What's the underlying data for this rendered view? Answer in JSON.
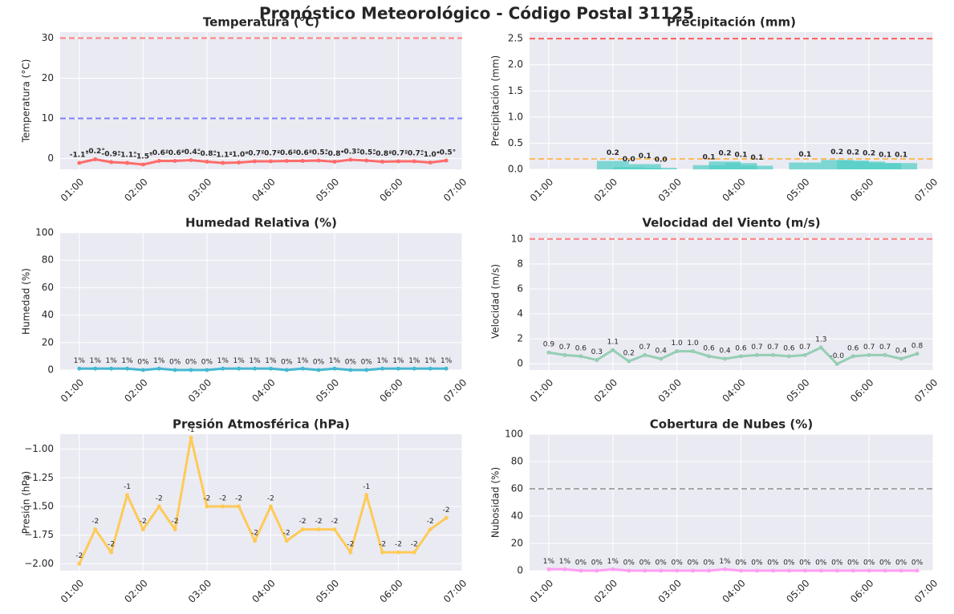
{
  "title": "Pronóstico Meteorológico - Código Postal 31125",
  "chart_data": [
    {
      "type": "line",
      "title": "Temperatura (°C)",
      "ylabel": "Temperatura (°C)",
      "color": "#ff6b6b",
      "grid": true,
      "x": [
        1,
        1.25,
        1.5,
        1.75,
        2,
        2.25,
        2.5,
        2.75,
        3,
        3.25,
        3.5,
        3.75,
        4,
        4.25,
        4.5,
        4.75,
        5,
        5.25,
        5.5,
        5.75,
        6,
        6.25,
        6.5,
        6.75
      ],
      "values": [
        -1.1,
        -0.2,
        -0.9,
        -1.1,
        -1.5,
        -0.6,
        -0.6,
        -0.4,
        -0.8,
        -1.1,
        -1.0,
        -0.7,
        -0.7,
        -0.6,
        -0.6,
        -0.5,
        -0.8,
        -0.3,
        -0.5,
        -0.8,
        -0.7,
        -0.7,
        -1.0,
        -0.5
      ],
      "value_labels": [
        "-1.1°",
        "-0.2°",
        "-0.9°",
        "-1.1°",
        "-1.5°",
        "-0.6°",
        "-0.6°",
        "-0.4°",
        "-0.8°",
        "-1.1°",
        "-1.0°",
        "-0.7°",
        "-0.7°",
        "-0.6°",
        "-0.6°",
        "-0.5°",
        "-0.8°",
        "-0.3°",
        "-0.5°",
        "-0.8°",
        "-0.7°",
        "-0.7°",
        "-1.0°",
        "-0.5°"
      ],
      "xlim": [
        0.7,
        7
      ],
      "xticks": [
        {
          "value": 1,
          "label": "01:00"
        },
        {
          "value": 2,
          "label": "02:00"
        },
        {
          "value": 3,
          "label": "03:00"
        },
        {
          "value": 4,
          "label": "04:00"
        },
        {
          "value": 5,
          "label": "05:00"
        },
        {
          "value": 6,
          "label": "06:00"
        },
        {
          "value": 7,
          "label": "07:00"
        }
      ],
      "ylim": [
        -2.7,
        31.5
      ],
      "yticks": [
        0,
        10,
        20,
        30
      ],
      "hlines": [
        {
          "value": 30,
          "color": "#ff6b6b"
        },
        {
          "value": 10,
          "color": "#6b6bff"
        }
      ]
    },
    {
      "type": "bar",
      "title": "Precipitación (mm)",
      "ylabel": "Precipitación (mm)",
      "color": "#4ecdc4",
      "grid": true,
      "x": [
        1,
        1.25,
        1.5,
        1.75,
        2,
        2.25,
        2.5,
        2.75,
        3,
        3.25,
        3.5,
        3.75,
        4,
        4.25,
        4.5,
        4.75,
        5,
        5.25,
        5.5,
        5.75,
        6,
        6.25,
        6.5,
        6.75
      ],
      "values": [
        null,
        null,
        null,
        null,
        0.16,
        0.04,
        0.1,
        0.03,
        null,
        null,
        0.08,
        0.15,
        0.12,
        0.07,
        null,
        null,
        0.13,
        null,
        0.18,
        0.17,
        0.15,
        0.12,
        0.12,
        null
      ],
      "value_labels": [
        null,
        null,
        null,
        null,
        "0.2",
        "0.0",
        "0.1",
        "0.0",
        null,
        null,
        "0.1",
        "0.2",
        "0.1",
        "0.1",
        null,
        null,
        "0.1",
        null,
        "0.2",
        "0.2",
        "0.2",
        "0.1",
        "0.1",
        null
      ],
      "xlim": [
        0.7,
        7
      ],
      "xticks": [
        {
          "value": 1,
          "label": "01:00"
        },
        {
          "value": 2,
          "label": "02:00"
        },
        {
          "value": 3,
          "label": "03:00"
        },
        {
          "value": 4,
          "label": "04:00"
        },
        {
          "value": 5,
          "label": "05:00"
        },
        {
          "value": 6,
          "label": "06:00"
        },
        {
          "value": 7,
          "label": "07:00"
        }
      ],
      "ylim": [
        0,
        2.625
      ],
      "yticks": [
        {
          "value": 0,
          "label": "0.0"
        },
        0.5,
        {
          "value": 1,
          "label": "1.0"
        },
        1.5,
        {
          "value": 2,
          "label": "2.0"
        },
        2.5
      ],
      "hlines": [
        {
          "value": 2.5,
          "color": "#ff4444"
        },
        {
          "value": 0.2,
          "color": "#ffb347"
        }
      ]
    },
    {
      "type": "line",
      "title": "Humedad Relativa (%)",
      "ylabel": "Humedad (%)",
      "color": "#45b7d1",
      "grid": true,
      "x": [
        1,
        1.25,
        1.5,
        1.75,
        2,
        2.25,
        2.5,
        2.75,
        3,
        3.25,
        3.5,
        3.75,
        4,
        4.25,
        4.5,
        4.75,
        5,
        5.25,
        5.5,
        5.75,
        6,
        6.25,
        6.5,
        6.75
      ],
      "values": [
        1,
        1,
        1,
        1,
        0,
        1,
        0,
        0,
        0,
        1,
        1,
        1,
        1,
        0,
        1,
        0,
        1,
        0,
        0,
        1,
        1,
        1,
        1,
        1
      ],
      "value_labels": [
        "1%",
        "1%",
        "1%",
        "1%",
        "0%",
        "1%",
        "0%",
        "0%",
        "0%",
        "1%",
        "1%",
        "1%",
        "1%",
        "0%",
        "1%",
        "0%",
        "1%",
        "0%",
        "0%",
        "1%",
        "1%",
        "1%",
        "1%",
        "1%"
      ],
      "xlim": [
        0.7,
        7
      ],
      "xticks": [
        {
          "value": 1,
          "label": "01:00"
        },
        {
          "value": 2,
          "label": "02:00"
        },
        {
          "value": 3,
          "label": "03:00"
        },
        {
          "value": 4,
          "label": "04:00"
        },
        {
          "value": 5,
          "label": "05:00"
        },
        {
          "value": 6,
          "label": "06:00"
        },
        {
          "value": 7,
          "label": "07:00"
        }
      ],
      "ylim": [
        0,
        100
      ],
      "yticks": [
        0,
        20,
        40,
        60,
        80,
        100
      ],
      "hlines": []
    },
    {
      "type": "line",
      "title": "Velocidad del Viento (m/s)",
      "ylabel": "Velocidad (m/s)",
      "color": "#96ceb4",
      "grid": true,
      "x": [
        1,
        1.25,
        1.5,
        1.75,
        2,
        2.25,
        2.5,
        2.75,
        3,
        3.25,
        3.5,
        3.75,
        4,
        4.25,
        4.5,
        4.75,
        5,
        5.25,
        5.5,
        5.75,
        6,
        6.25,
        6.5,
        6.75
      ],
      "values": [
        0.9,
        0.7,
        0.6,
        0.3,
        1.1,
        0.2,
        0.7,
        0.4,
        1.0,
        1.0,
        0.6,
        0.4,
        0.6,
        0.7,
        0.7,
        0.6,
        0.7,
        1.3,
        -0.02,
        0.6,
        0.7,
        0.7,
        0.4,
        0.8
      ],
      "value_labels": [
        "0.9",
        "0.7",
        "0.6",
        "0.3",
        "1.1",
        "0.2",
        "0.7",
        "0.4",
        "1.0",
        "1.0",
        "0.6",
        "0.4",
        "0.6",
        "0.7",
        "0.7",
        "0.6",
        "0.7",
        "1.3",
        "-0.0",
        "0.6",
        "0.7",
        "0.7",
        "0.4",
        "0.8"
      ],
      "xlim": [
        0.7,
        7
      ],
      "xticks": [
        {
          "value": 1,
          "label": "01:00"
        },
        {
          "value": 2,
          "label": "02:00"
        },
        {
          "value": 3,
          "label": "03:00"
        },
        {
          "value": 4,
          "label": "04:00"
        },
        {
          "value": 5,
          "label": "05:00"
        },
        {
          "value": 6,
          "label": "06:00"
        },
        {
          "value": 7,
          "label": "07:00"
        }
      ],
      "ylim": [
        -0.5,
        10.5
      ],
      "yticks": [
        0,
        2,
        4,
        6,
        8,
        10
      ],
      "hlines": [
        {
          "value": 10,
          "color": "#ff6b6b"
        }
      ]
    },
    {
      "type": "line",
      "title": "Presión Atmosférica (hPa)",
      "ylabel": "Presión (hPa)",
      "color": "#feca57",
      "grid": true,
      "x": [
        1,
        1.25,
        1.5,
        1.75,
        2,
        2.25,
        2.5,
        2.75,
        3,
        3.25,
        3.5,
        3.75,
        4,
        4.25,
        4.5,
        4.75,
        5,
        5.25,
        5.5,
        5.75,
        6,
        6.25,
        6.5,
        6.75
      ],
      "values": [
        -2.0,
        -1.7,
        -1.9,
        -1.4,
        -1.7,
        -1.5,
        -1.7,
        -0.9,
        -1.5,
        -1.5,
        -1.5,
        -1.8,
        -1.5,
        -1.8,
        -1.7,
        -1.7,
        -1.7,
        -1.9,
        -1.4,
        -1.9,
        -1.9,
        -1.9,
        -1.7,
        -1.6
      ],
      "value_labels": [
        "-2",
        "-2",
        "-2",
        "-1",
        "-2",
        "-2",
        "-2",
        "-1",
        "-2",
        "-2",
        "-2",
        "-2",
        "-2",
        "-2",
        "-2",
        "-2",
        "-2",
        "-2",
        "-1",
        "-2",
        "-2",
        "-2",
        "-2",
        "-2"
      ],
      "xlim": [
        0.7,
        7
      ],
      "xticks": [
        {
          "value": 1,
          "label": "01:00"
        },
        {
          "value": 2,
          "label": "02:00"
        },
        {
          "value": 3,
          "label": "03:00"
        },
        {
          "value": 4,
          "label": "04:00"
        },
        {
          "value": 5,
          "label": "05:00"
        },
        {
          "value": 6,
          "label": "06:00"
        },
        {
          "value": 7,
          "label": "07:00"
        }
      ],
      "ylim": [
        -2.06,
        -0.87
      ],
      "yticks": [
        {
          "value": -2,
          "label": "−2.00"
        },
        {
          "value": -1.75,
          "label": "−1.75"
        },
        {
          "value": -1.5,
          "label": "−1.50"
        },
        {
          "value": -1.25,
          "label": "−1.25"
        },
        {
          "value": -1,
          "label": "−1.00"
        }
      ],
      "hlines": []
    },
    {
      "type": "line",
      "title": "Cobertura de Nubes (%)",
      "ylabel": "Nubosidad (%)",
      "color": "#ff9ff3",
      "grid": true,
      "x": [
        1,
        1.25,
        1.5,
        1.75,
        2,
        2.25,
        2.5,
        2.75,
        3,
        3.25,
        3.5,
        3.75,
        4,
        4.25,
        4.5,
        4.75,
        5,
        5.25,
        5.5,
        5.75,
        6,
        6.25,
        6.5,
        6.75
      ],
      "values": [
        1,
        1,
        0,
        0,
        1,
        0,
        0,
        0,
        0,
        0,
        0,
        1,
        0,
        0,
        0,
        0,
        0,
        0,
        0,
        0,
        0,
        0,
        0,
        0
      ],
      "value_labels": [
        "1%",
        "1%",
        "0%",
        "0%",
        "1%",
        "0%",
        "0%",
        "0%",
        "0%",
        "0%",
        "0%",
        "1%",
        "0%",
        "0%",
        "0%",
        "0%",
        "0%",
        "0%",
        "0%",
        "0%",
        "0%",
        "0%",
        "0%",
        "0%"
      ],
      "xlim": [
        0.7,
        7
      ],
      "xticks": [
        {
          "value": 1,
          "label": "01:00"
        },
        {
          "value": 2,
          "label": "02:00"
        },
        {
          "value": 3,
          "label": "03:00"
        },
        {
          "value": 4,
          "label": "04:00"
        },
        {
          "value": 5,
          "label": "05:00"
        },
        {
          "value": 6,
          "label": "06:00"
        },
        {
          "value": 7,
          "label": "07:00"
        }
      ],
      "ylim": [
        0,
        100
      ],
      "yticks": [
        0,
        20,
        40,
        60,
        80,
        100
      ],
      "hlines": [
        {
          "value": 60,
          "color": "#999999"
        }
      ]
    }
  ]
}
